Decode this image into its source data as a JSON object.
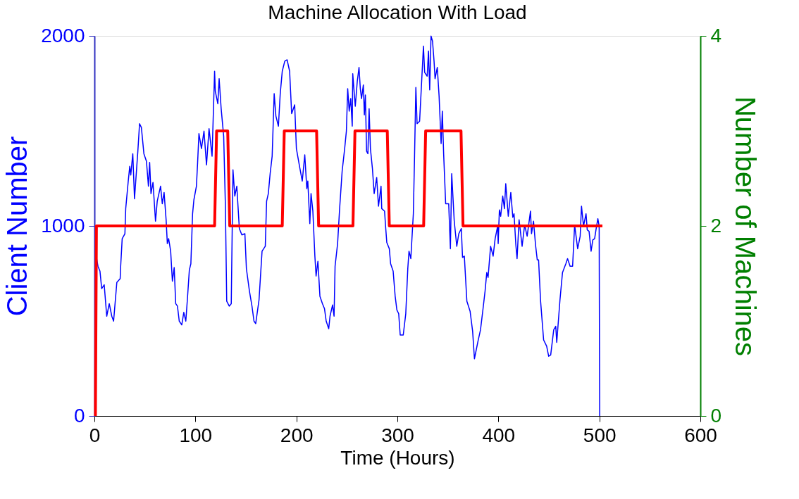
{
  "chart_data": {
    "type": "line",
    "title": "Machine Allocation With Load",
    "xlabel": "Time (Hours)",
    "ylabel": "Client Number",
    "y2label": "Number of Machines",
    "xlim": [
      0,
      600
    ],
    "xticks": [
      0,
      100,
      200,
      300,
      400,
      500,
      600
    ],
    "ylim": [
      0,
      2000
    ],
    "yticks": [
      0,
      1000,
      2000
    ],
    "y2lim": [
      0,
      4
    ],
    "y2ticks": [
      0,
      2,
      4
    ],
    "grid": false,
    "marker": "none",
    "line_style": "solid",
    "series": [
      {
        "color": "#0000ff",
        "x": [
          1,
          3.5,
          5.5,
          7.2,
          9.7,
          12.2,
          14.7,
          17.2,
          19,
          22.2,
          25.5,
          26,
          27.5,
          30.2,
          31,
          33.5,
          35,
          36,
          38,
          39.7,
          43,
          44.7,
          46.5,
          49,
          51.5,
          53.5,
          54.7,
          56,
          58,
          60.5,
          62.2,
          65.5,
          67.2,
          69,
          71,
          72.2,
          73.5,
          75.5,
          77.2,
          79,
          80.5,
          82.2,
          84,
          86.5,
          88.5,
          90.5,
          92.2,
          94,
          95.5,
          97.2,
          98.5,
          101,
          102.2,
          103.5,
          106,
          108.5,
          111,
          113.5,
          116.5,
          119,
          119.7,
          122.2,
          123.5,
          125.5,
          128,
          129.7,
          131,
          133.5,
          135.5,
          137.2,
          139,
          141,
          143.5,
          146,
          149,
          150.5,
          153.5,
          156,
          158,
          159.7,
          163,
          166,
          169.2,
          170.5,
          172.2,
          174,
          176,
          178,
          179.7,
          182.2,
          184,
          186,
          188.5,
          190.8,
          193.3,
          195.3,
          198.3,
          200,
          203.3,
          205.8,
          208.3,
          210.3,
          211.3,
          213.3,
          214.5,
          216.3,
          218.3,
          219.5,
          221.3,
          223.3,
          225.8,
          227.8,
          229.5,
          232,
          233.3,
          235.8,
          237.3,
          238.3,
          240.8,
          242.8,
          245.3,
          247.8,
          249.5,
          250.8,
          252.3,
          253.8,
          255.3,
          255.8,
          258.3,
          260.3,
          262,
          263.3,
          264.5,
          266.3,
          267.3,
          268.3,
          269.5,
          270.8,
          272,
          273.3,
          275.3,
          277,
          279.5,
          281.3,
          283.8,
          284.5,
          287.3,
          288.3,
          289.5,
          292,
          293.3,
          295.8,
          297.8,
          299.5,
          301.3,
          302.8,
          305.8,
          308.3,
          310.3,
          311.5,
          313.3,
          315.8,
          317,
          318.3,
          319.5,
          322,
          323.8,
          325.8,
          327,
          329.5,
          330.8,
          332,
          333.3,
          334.8,
          336.3,
          337.3,
          339.5,
          341.3,
          343.3,
          344.5,
          345.8,
          347.8,
          350.8,
          352.5,
          353.8,
          356.3,
          358.8,
          360.8,
          363.3,
          364.5,
          366.3,
          368.8,
          372,
          374.5,
          376.3,
          379.8,
          382.3,
          384.8,
          386.8,
          388.5,
          389.8,
          392.3,
          394.8,
          396.8,
          399.3,
          399.8,
          401,
          402.3,
          404.3,
          406,
          407.3,
          409.8,
          412.3,
          414.3,
          415.5,
          417.3,
          418.5,
          420.5,
          423.5,
          426,
          428.5,
          431.8,
          432.8,
          434.8,
          436.8,
          438.5,
          439.8,
          441.8,
          444.8,
          447.8,
          449.8,
          451.8,
          454.8,
          456.8,
          457.8,
          461,
          463.5,
          466.8,
          468.5,
          471,
          473.5,
          475.5,
          478.5,
          481,
          482.3,
          484.3,
          486.8,
          488,
          489.8,
          491.8,
          493.5,
          495.3,
          496.8,
          498.5,
          499.8,
          500.3
        ],
        "values": [
          867,
          788,
          762,
          670,
          690,
          525,
          591,
          525,
          499,
          703,
          722,
          788,
          933,
          959,
          1091,
          1236,
          1314,
          1268,
          1380,
          1143,
          1393,
          1538,
          1518,
          1380,
          1341,
          1209,
          1334,
          1170,
          1229,
          1025,
          1130,
          1209,
          1117,
          1176,
          1032,
          907,
          933,
          867,
          709,
          781,
          591,
          578,
          499,
          479,
          545,
          499,
          624,
          768,
          801,
          1064,
          1137,
          1209,
          1334,
          1486,
          1407,
          1499,
          1321,
          1512,
          1367,
          1814,
          1709,
          1643,
          1775,
          1617,
          1472,
          1104,
          604,
          578,
          591,
          1295,
          1157,
          1209,
          986,
          953,
          959,
          775,
          657,
          578,
          499,
          486,
          611,
          867,
          893,
          1130,
          1170,
          1275,
          1367,
          1696,
          1578,
          1525,
          1696,
          1814,
          1867,
          1874,
          1814,
          1591,
          1637,
          1407,
          1308,
          1236,
          1374,
          1196,
          1236,
          1012,
          1170,
          1078,
          841,
          736,
          814,
          630,
          591,
          565,
          499,
          459,
          525,
          584,
          525,
          788,
          907,
          1091,
          1288,
          1407,
          1499,
          1722,
          1604,
          1670,
          1525,
          1801,
          1630,
          1762,
          1834,
          1722,
          1670,
          1742,
          1584,
          1689,
          1393,
          1380,
          1617,
          1407,
          1301,
          1170,
          1255,
          1104,
          1209,
          1091,
          1078,
          999,
          913,
          880,
          801,
          762,
          630,
          558,
          538,
          426,
          426,
          538,
          775,
          867,
          828,
          1064,
          1367,
          1729,
          1538,
          1551,
          1736,
          1946,
          1808,
          1788,
          1920,
          1716,
          1999,
          1972,
          1867,
          1775,
          1834,
          1683,
          1433,
          1604,
          1380,
          1117,
          1117,
          880,
          1275,
          1025,
          893,
          959,
          986,
          834,
          841,
          604,
          551,
          446,
          301,
          393,
          453,
          564,
          656,
          755,
          729,
          893,
          841,
          933,
          999,
          907,
          1084,
          1051,
          1157,
          1091,
          1222,
          1051,
          1176,
          1045,
          1064,
          900,
          828,
          1032,
          893,
          1005,
          946,
          1078,
          959,
          1025,
          900,
          821,
          821,
          604,
          400,
          367,
          314,
          321,
          453,
          472,
          387,
          611,
          755,
          801,
          828,
          788,
          788,
          1005,
          880,
          946,
          1104,
          999,
          1064,
          979,
          972,
          867,
          926,
          933,
          985,
          1038,
          999,
          0
        ]
      },
      {
        "type": "line",
        "axis": "y2",
        "color": "#ff0000",
        "x": [
          1,
          2,
          119,
          121,
          132,
          134,
          186,
          188,
          220,
          222,
          256,
          258,
          290,
          292,
          326,
          328,
          363,
          365,
          503
        ],
        "values": [
          0,
          2,
          2,
          3,
          3,
          2,
          2,
          3,
          3,
          2,
          2,
          3,
          3,
          2,
          2,
          3,
          3,
          2,
          2
        ]
      }
    ]
  }
}
